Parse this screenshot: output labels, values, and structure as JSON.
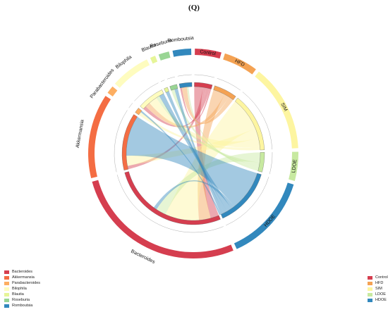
{
  "panel_label": "(Q)",
  "chart_data": {
    "type": "chord",
    "segments": [
      {
        "name": "Control",
        "color": "#d53e4f",
        "group": "treatment",
        "value": 10
      },
      {
        "name": "HFD",
        "color": "#f4a253",
        "group": "treatment",
        "value": 13
      },
      {
        "name": "SIM",
        "color": "#fdf5a0",
        "group": "treatment",
        "value": 33
      },
      {
        "name": "LDOE",
        "color": "#c7e9a0",
        "group": "treatment",
        "value": 11
      },
      {
        "name": "HDOE",
        "color": "#3288bd",
        "group": "treatment",
        "value": 33
      },
      {
        "name": "Bacteroides",
        "color": "#d53e4f",
        "group": "taxa",
        "value": 66
      },
      {
        "name": "Akkermansia",
        "color": "#f46d43",
        "group": "taxa",
        "value": 32
      },
      {
        "name": "Parabacteroides",
        "color": "#fdae61",
        "group": "taxa",
        "value": 3
      },
      {
        "name": "Bilophila",
        "color": "#fefcbf",
        "group": "taxa",
        "value": 15
      },
      {
        "name": "Blautia",
        "color": "#e6f598",
        "group": "taxa",
        "value": 2
      },
      {
        "name": "Roseburia",
        "color": "#99d594",
        "group": "taxa",
        "value": 4
      },
      {
        "name": "Romboutsia",
        "color": "#3288bd",
        "group": "taxa",
        "value": 7
      }
    ],
    "links": [
      {
        "source": "Control",
        "target": "Bacteroides",
        "value": 5
      },
      {
        "source": "Control",
        "target": "Akkermansia",
        "value": 2
      },
      {
        "source": "Control",
        "target": "Bilophila",
        "value": 2
      },
      {
        "source": "Control",
        "target": "Romboutsia",
        "value": 1
      },
      {
        "source": "HFD",
        "target": "Bacteroides",
        "value": 7
      },
      {
        "source": "HFD",
        "target": "Bilophila",
        "value": 3
      },
      {
        "source": "HFD",
        "target": "Romboutsia",
        "value": 3
      },
      {
        "source": "SIM",
        "target": "Bacteroides",
        "value": 20
      },
      {
        "source": "SIM",
        "target": "Akkermansia",
        "value": 6
      },
      {
        "source": "SIM",
        "target": "Bilophila",
        "value": 5
      },
      {
        "source": "SIM",
        "target": "Parabacteroides",
        "value": 2
      },
      {
        "source": "LDOE",
        "target": "Bacteroides",
        "value": 6
      },
      {
        "source": "LDOE",
        "target": "Bilophila",
        "value": 2
      },
      {
        "source": "LDOE",
        "target": "Roseburia",
        "value": 2
      },
      {
        "source": "LDOE",
        "target": "Romboutsia",
        "value": 1
      },
      {
        "source": "HDOE",
        "target": "Akkermansia",
        "value": 24
      },
      {
        "source": "HDOE",
        "target": "Bacteroides",
        "value": 2
      },
      {
        "source": "HDOE",
        "target": "Bilophila",
        "value": 3
      },
      {
        "source": "HDOE",
        "target": "Blautia",
        "value": 2
      },
      {
        "source": "HDOE",
        "target": "Roseburia",
        "value": 2
      },
      {
        "source": "HDOE",
        "target": "Parabacteroides",
        "value": 1
      }
    ],
    "legend_taxa_title": "",
    "legend_groups_title": ""
  },
  "legend_taxa": [
    "Bacteroides",
    "Akkermansia",
    "Parabacteroides",
    "Bilophila",
    "Blautia",
    "Roseburia",
    "Romboutsia"
  ],
  "legend_groups": [
    "Control",
    "HFD",
    "SIM",
    "LDOE",
    "HDOE"
  ],
  "colors": {
    "Control": "#d53e4f",
    "HFD": "#f4a253",
    "SIM": "#fdf5a0",
    "LDOE": "#c7e9a0",
    "HDOE": "#3288bd",
    "Bacteroides": "#d53e4f",
    "Akkermansia": "#f46d43",
    "Parabacteroides": "#fdae61",
    "Bilophila": "#fefcbf",
    "Blautia": "#e6f598",
    "Roseburia": "#99d594",
    "Romboutsia": "#3288bd"
  }
}
